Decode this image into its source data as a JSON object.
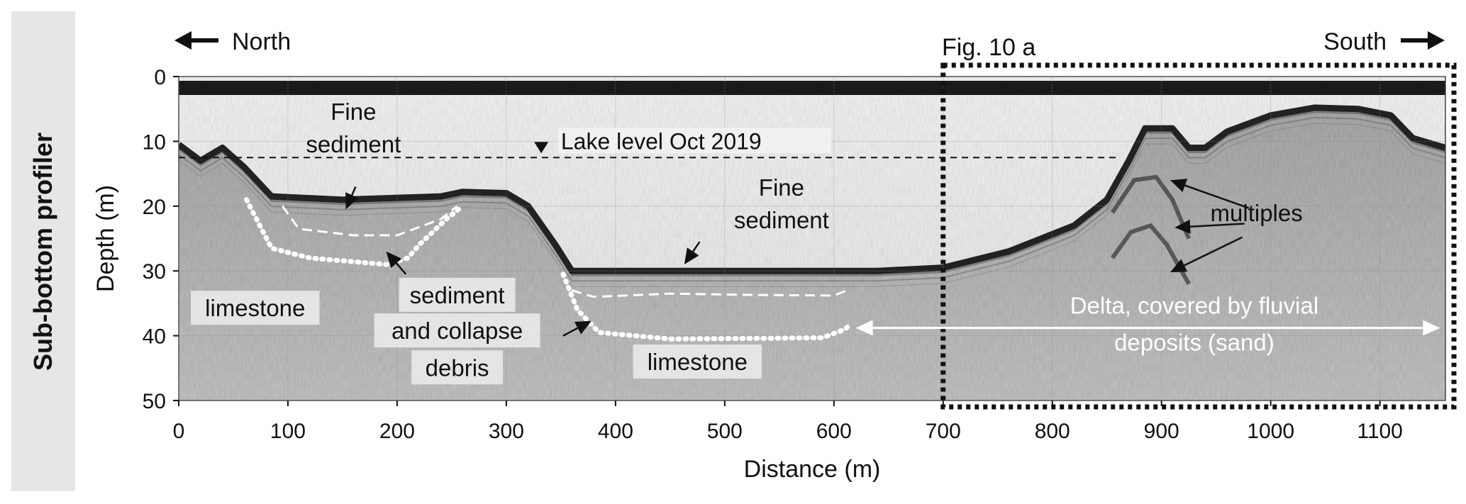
{
  "side_panel": {
    "label": "Sub-bottom profiler"
  },
  "header": {
    "north": "North",
    "south": "South",
    "inset_label": "Fig. 10 a"
  },
  "colors": {
    "background": "#ffffff",
    "panel": "#e6e6e6",
    "profile_gray": "#a9a9a9",
    "seabed": "#222222",
    "annotation": "#ffffff",
    "text": "#111111"
  },
  "chart_data": {
    "type": "seismic-profile",
    "xlabel": "Distance (m)",
    "ylabel": "Depth (m)",
    "xlim": [
      0,
      1160
    ],
    "ylim": [
      0,
      50
    ],
    "x_ticks": [
      "0",
      "100",
      "200",
      "300",
      "400",
      "500",
      "600",
      "700",
      "800",
      "900",
      "1000",
      "1100"
    ],
    "y_ticks": [
      "0",
      "10",
      "20",
      "30",
      "40",
      "50"
    ],
    "lake_level": {
      "label": "Lake level Oct 2019",
      "depth": 12.5
    },
    "inset_box": {
      "label": "Fig. 10 a",
      "x_start": 700,
      "x_end": 1160
    },
    "seabed_profile": [
      [
        0,
        10.5
      ],
      [
        20,
        13
      ],
      [
        40,
        11
      ],
      [
        60,
        14
      ],
      [
        85,
        18.5
      ],
      [
        150,
        19
      ],
      [
        240,
        18.5
      ],
      [
        260,
        17.8
      ],
      [
        300,
        18
      ],
      [
        320,
        20
      ],
      [
        345,
        26
      ],
      [
        360,
        30
      ],
      [
        500,
        30
      ],
      [
        600,
        30
      ],
      [
        640,
        30
      ],
      [
        700,
        29.5
      ],
      [
        760,
        27
      ],
      [
        820,
        23
      ],
      [
        850,
        19
      ],
      [
        870,
        13
      ],
      [
        885,
        8
      ],
      [
        910,
        8
      ],
      [
        925,
        11
      ],
      [
        940,
        11
      ],
      [
        960,
        8.5
      ],
      [
        1000,
        6
      ],
      [
        1040,
        4.8
      ],
      [
        1080,
        5
      ],
      [
        1110,
        6
      ],
      [
        1130,
        9.5
      ],
      [
        1160,
        11
      ]
    ],
    "reflectors": [
      {
        "name": "fine-sediment-base-west",
        "style": "dashed",
        "points": [
          [
            95,
            20
          ],
          [
            110,
            23.5
          ],
          [
            160,
            24.5
          ],
          [
            200,
            24.5
          ],
          [
            240,
            22
          ],
          [
            255,
            20
          ]
        ]
      },
      {
        "name": "limestone-top-west",
        "style": "dotted",
        "points": [
          [
            62,
            19
          ],
          [
            85,
            26.5
          ],
          [
            120,
            28
          ],
          [
            190,
            29
          ],
          [
            210,
            28
          ],
          [
            220,
            26
          ],
          [
            245,
            22
          ],
          [
            260,
            20
          ]
        ]
      },
      {
        "name": "fine-sediment-base-east",
        "style": "dashed",
        "points": [
          [
            360,
            33
          ],
          [
            380,
            34
          ],
          [
            450,
            33.5
          ],
          [
            520,
            33.7
          ],
          [
            600,
            33.8
          ],
          [
            615,
            32.8
          ]
        ]
      },
      {
        "name": "limestone-top-east",
        "style": "dotted",
        "points": [
          [
            352,
            30.5
          ],
          [
            365,
            36
          ],
          [
            385,
            39.5
          ],
          [
            450,
            40.5
          ],
          [
            540,
            40.4
          ],
          [
            590,
            40.3
          ],
          [
            610,
            39
          ],
          [
            615,
            38.3
          ]
        ]
      }
    ],
    "multiples": [
      [
        [
          855,
          21
        ],
        [
          875,
          16
        ],
        [
          895,
          15.5
        ],
        [
          910,
          19
        ],
        [
          925,
          25
        ]
      ],
      [
        [
          855,
          28
        ],
        [
          872,
          24
        ],
        [
          890,
          23
        ],
        [
          905,
          26
        ],
        [
          925,
          32
        ]
      ]
    ],
    "labels": [
      {
        "text": "Fine",
        "x": 160,
        "y": 6.7,
        "box": false
      },
      {
        "text": "sediment",
        "x": 160,
        "y": 11.7,
        "box": false
      },
      {
        "text": "Fine",
        "x": 552,
        "y": 18.4,
        "box": false
      },
      {
        "text": "sediment",
        "x": 552,
        "y": 23.4,
        "box": false
      },
      {
        "text": "limestone",
        "x": 70,
        "y": 37,
        "box": true
      },
      {
        "text": "sediment",
        "x": 255,
        "y": 35,
        "box": true
      },
      {
        "text": "and collapse",
        "x": 255,
        "y": 40.5,
        "box": true
      },
      {
        "text": "debris",
        "x": 255,
        "y": 46.2,
        "box": true
      },
      {
        "text": "limestone",
        "x": 475,
        "y": 45.3,
        "box": true
      },
      {
        "text": "multiples",
        "x": 987,
        "y": 22.3,
        "box": false
      }
    ],
    "delta_label": [
      "Delta, covered by fluvial",
      "deposits (sand)"
    ],
    "delta_arrow": {
      "x_start": 620,
      "x_end": 1155,
      "y": 38.8
    },
    "arrows": [
      {
        "from": [
          162,
          17
        ],
        "to": [
          153,
          20.5
        ]
      },
      {
        "from": [
          477,
          25.5
        ],
        "to": [
          463,
          29
        ]
      },
      {
        "from": [
          208,
          30.5
        ],
        "to": [
          190,
          27
        ]
      },
      {
        "from": [
          352,
          40
        ],
        "to": [
          378,
          37.7
        ]
      },
      {
        "from": [
          980,
          20.3
        ],
        "to": [
          908,
          16
        ]
      },
      {
        "from": [
          976,
          22.7
        ],
        "to": [
          912,
          23.3
        ]
      },
      {
        "from": [
          974,
          24.8
        ],
        "to": [
          908,
          30.2
        ]
      }
    ]
  }
}
